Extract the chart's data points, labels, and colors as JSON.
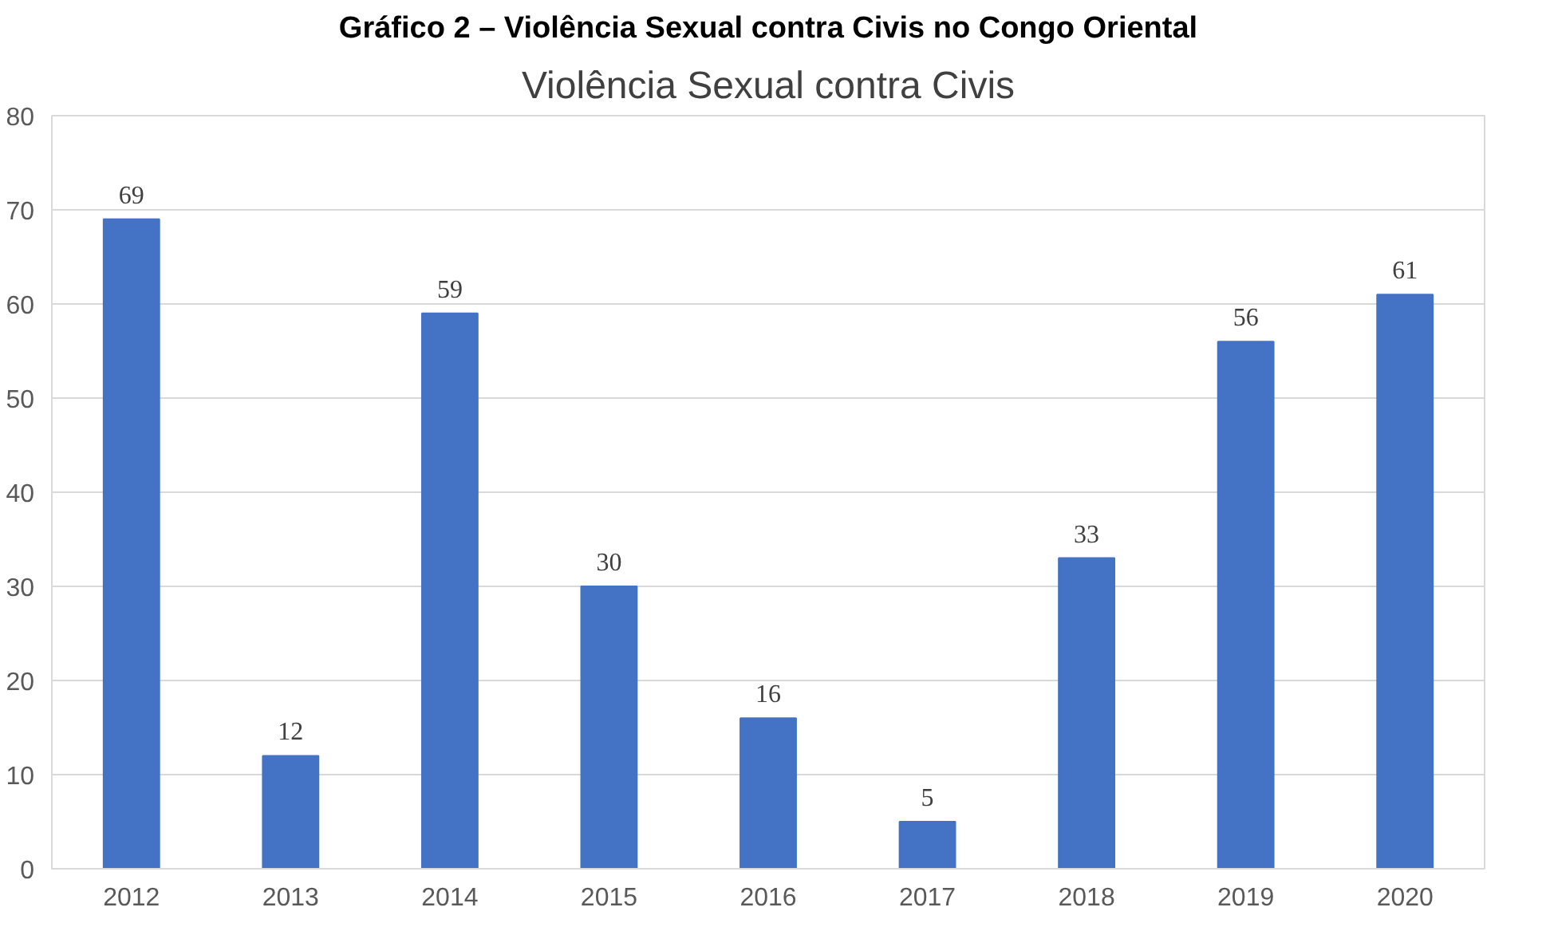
{
  "chart_data": {
    "type": "bar",
    "title": "Gráfico 2 – Violência Sexual contra Civis no Congo Oriental",
    "subtitle": "Violência Sexual contra Civis",
    "categories": [
      "2012",
      "2013",
      "2014",
      "2015",
      "2016",
      "2017",
      "2018",
      "2019",
      "2020"
    ],
    "values": [
      69,
      12,
      59,
      30,
      16,
      5,
      33,
      56,
      61
    ],
    "color": "#4472c4",
    "ylim": [
      0,
      80
    ],
    "yticks": [
      0,
      10,
      20,
      30,
      40,
      50,
      60,
      70,
      80
    ],
    "grid": "y",
    "data_labels": true
  }
}
